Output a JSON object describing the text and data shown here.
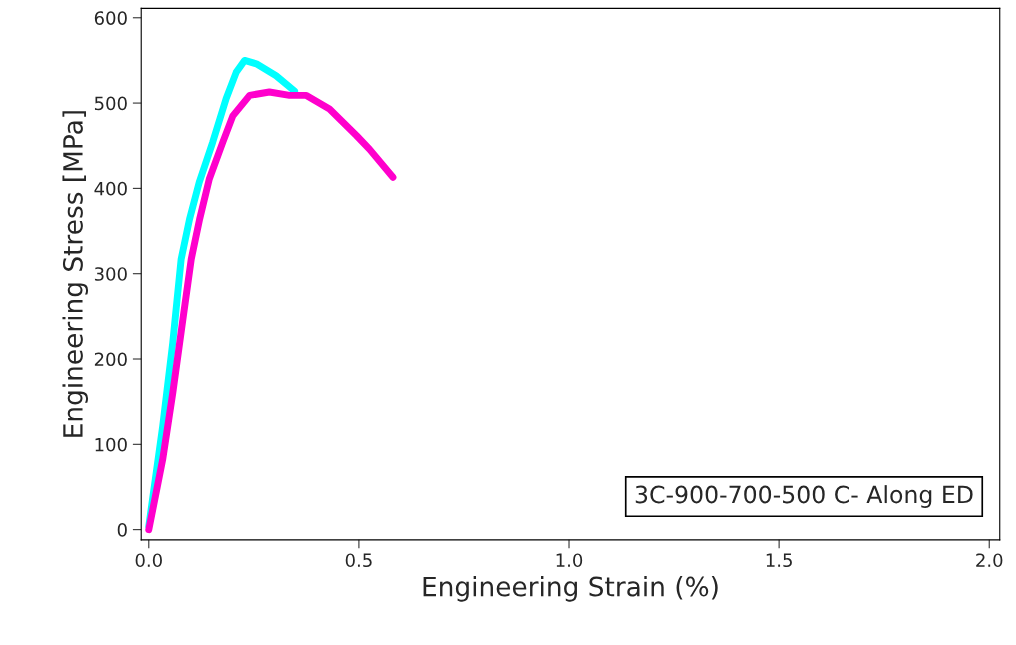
{
  "chart_data": {
    "type": "line",
    "xlabel": "Engineering Strain (%)",
    "ylabel": "Engineering Stress [MPa]",
    "annotations": [
      "3C-900-700-500 C- Along ED"
    ],
    "xlim": [
      -0.018,
      2.025
    ],
    "ylim": [
      -12,
      611
    ],
    "xticks": [
      {
        "value": 0,
        "label": "0.0"
      },
      {
        "value": 0.5,
        "label": "0.5"
      },
      {
        "value": 1,
        "label": "1.0"
      },
      {
        "value": 1.5,
        "label": "1.5"
      },
      {
        "value": 2,
        "label": "2.0"
      }
    ],
    "yticks": [
      0,
      100,
      200,
      300,
      400,
      500,
      600
    ],
    "grid": false,
    "marker": "none",
    "line_style": "solid",
    "series": [
      {
        "color": "#00ffff",
        "x": [
          0,
          0.033,
          0.057,
          0.077,
          0.097,
          0.12,
          0.152,
          0.184,
          0.208,
          0.228,
          0.256,
          0.303,
          0.347
        ],
        "values": [
          4,
          121,
          219,
          317,
          364,
          407,
          454,
          505,
          536,
          550,
          546,
          532,
          514
        ]
      },
      {
        "color": "#ff00cc",
        "x": [
          0,
          0.033,
          0.057,
          0.081,
          0.101,
          0.121,
          0.144,
          0.176,
          0.2,
          0.24,
          0.287,
          0.335,
          0.375,
          0.43,
          0.494,
          0.525,
          0.581
        ],
        "values": [
          0,
          82,
          160,
          246,
          317,
          364,
          411,
          454,
          485,
          509,
          513,
          509,
          509,
          493,
          462,
          446,
          413
        ]
      }
    ]
  }
}
